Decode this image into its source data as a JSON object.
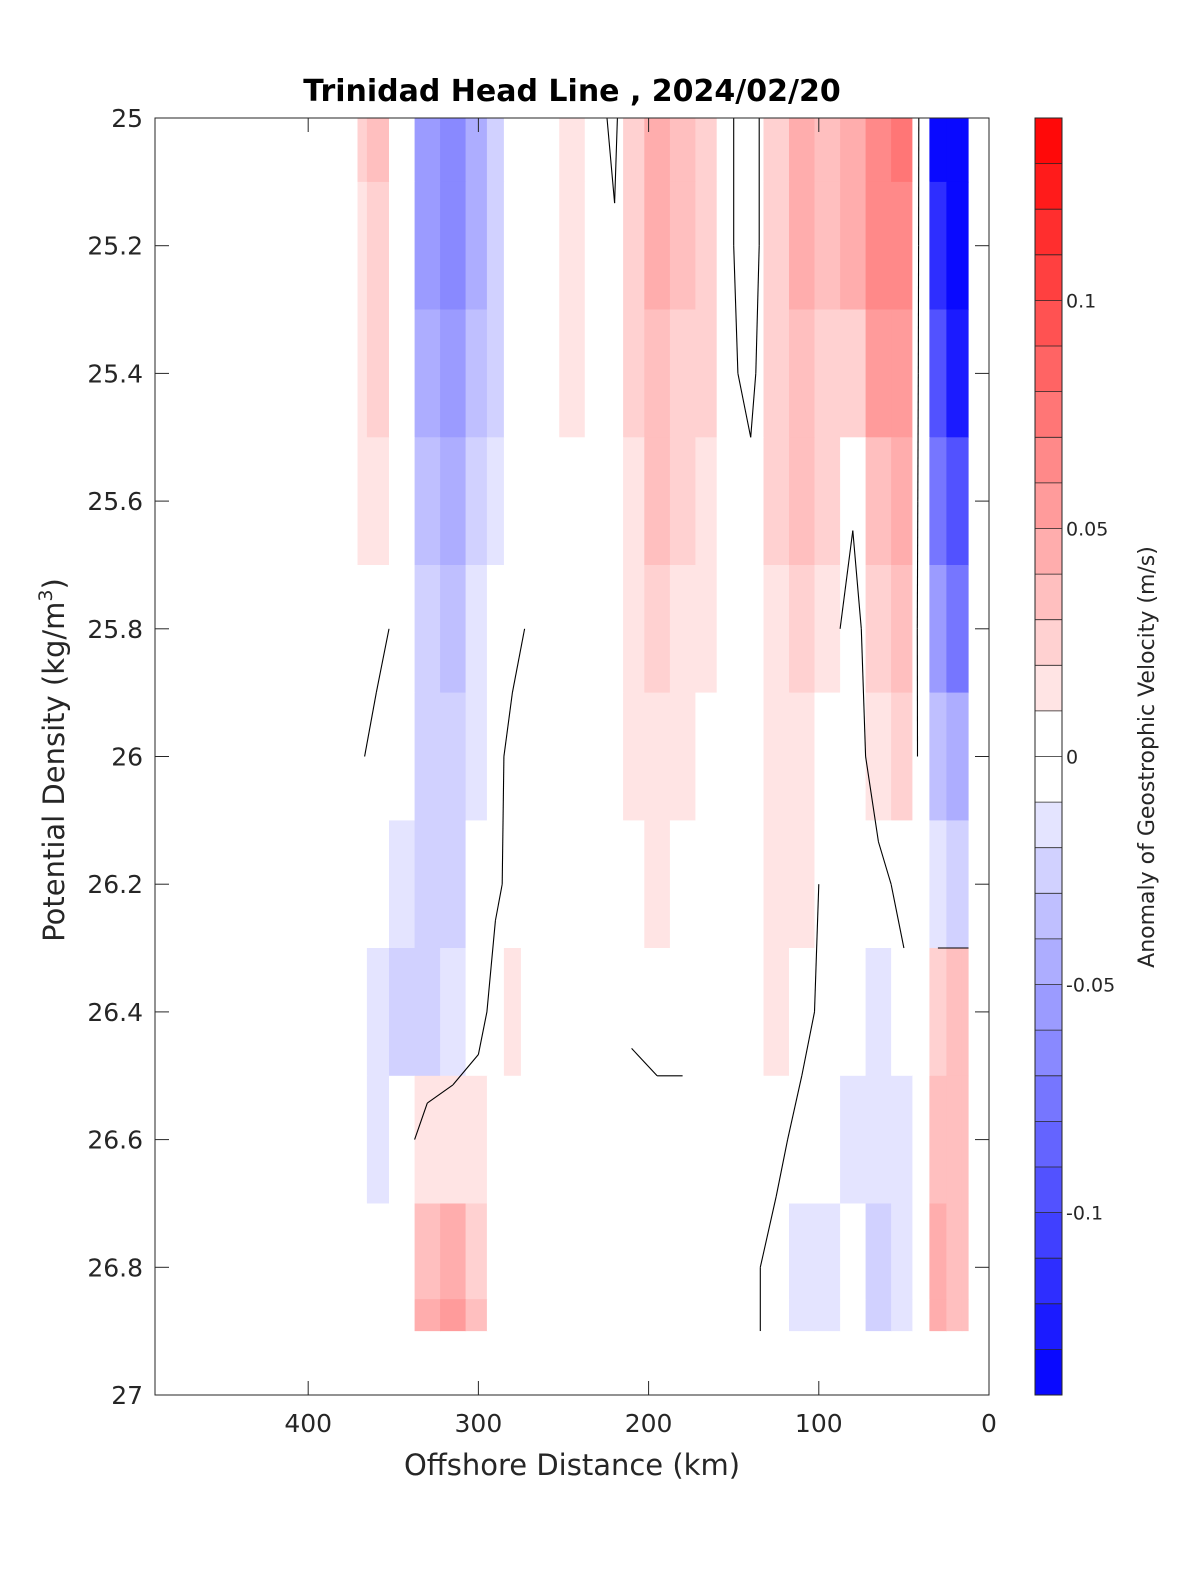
{
  "chart_data": {
    "type": "heatmap",
    "title": "Trinidad Head Line , 2024/02/20",
    "xlabel": "Offshore Distance (km)",
    "ylabel_main": "Potential Density (kg/m",
    "ylabel_sup": "3",
    "ylabel_close": ")",
    "xlim": [
      490,
      0
    ],
    "x_reversed": true,
    "ylim": [
      25,
      27
    ],
    "y_reversed": true,
    "x_ticks": [
      400,
      300,
      200,
      100,
      0
    ],
    "y_ticks": [
      25,
      25.2,
      25.4,
      25.6,
      25.8,
      26,
      26.2,
      26.4,
      26.6,
      26.8,
      27
    ],
    "colorbar": {
      "label": "Anomaly of Geostrophic Velocity (m/s)",
      "range": [
        -0.14,
        0.14
      ],
      "levels": 28,
      "ticks": [
        0.1,
        0.05,
        0,
        -0.05,
        -0.1
      ],
      "colormap": "blue-white-red",
      "neg_color": "#0000ff",
      "pos_color": "#ff0000"
    },
    "contour_level": 0,
    "contour_color": "#000000",
    "x": [
      371,
      360,
      345,
      330,
      315,
      300,
      290,
      280,
      270,
      260,
      245,
      230,
      220,
      210,
      195,
      180,
      165,
      155,
      140,
      125,
      110,
      95,
      80,
      65,
      50,
      40,
      30,
      20,
      12
    ],
    "y": [
      25.0,
      25.2,
      25.4,
      25.6,
      25.8,
      26.0,
      26.2,
      26.4,
      26.6,
      26.8,
      26.9
    ],
    "values": [
      [
        0.02,
        0.03,
        0.0,
        -0.06,
        -0.07,
        -0.05,
        -0.03,
        0.0,
        0.005,
        0.005,
        0.015,
        0.005,
        -0.004,
        0.02,
        0.04,
        0.03,
        0.02,
        0.005,
        -0.01,
        0.02,
        0.04,
        0.03,
        0.045,
        0.06,
        0.07,
        -0.01,
        -0.15,
        -0.15,
        -0.15
      ],
      [
        0.015,
        0.025,
        0.0,
        -0.06,
        -0.07,
        -0.05,
        -0.03,
        0.0,
        0.005,
        0.005,
        0.015,
        0.005,
        0.002,
        0.02,
        0.04,
        0.03,
        0.02,
        0.005,
        -0.01,
        0.02,
        0.04,
        0.03,
        0.045,
        0.06,
        0.065,
        -0.01,
        -0.12,
        -0.15,
        -0.15
      ],
      [
        0.015,
        0.02,
        0.0,
        -0.05,
        -0.06,
        -0.04,
        -0.025,
        0.0,
        0.005,
        0.005,
        0.015,
        0.005,
        0.002,
        0.02,
        0.035,
        0.025,
        0.02,
        0.005,
        -0.005,
        0.02,
        0.035,
        0.025,
        0.025,
        0.05,
        0.055,
        -0.01,
        -0.1,
        -0.13,
        -0.13
      ],
      [
        0.01,
        0.01,
        0.0,
        -0.04,
        -0.05,
        -0.03,
        -0.015,
        0.0,
        0.005,
        0.003,
        0.006,
        0.003,
        0.002,
        0.015,
        0.03,
        0.02,
        0.015,
        0.003,
        0.005,
        0.02,
        0.03,
        0.02,
        0.003,
        0.035,
        0.045,
        -0.01,
        -0.08,
        -0.1,
        -0.1
      ],
      [
        0.005,
        0.005,
        -0.005,
        -0.03,
        -0.04,
        -0.02,
        -0.01,
        -0.005,
        0.002,
        0.002,
        0.004,
        0.003,
        0.002,
        0.01,
        0.02,
        0.015,
        0.01,
        0.003,
        0.005,
        0.015,
        0.02,
        0.01,
        -0.01,
        0.02,
        0.03,
        -0.008,
        -0.06,
        -0.08,
        -0.08
      ],
      [
        0.003,
        -0.005,
        -0.01,
        -0.025,
        -0.03,
        -0.015,
        -0.005,
        0.005,
        0.002,
        0.002,
        0.004,
        0.003,
        0.002,
        0.01,
        0.015,
        0.01,
        0.005,
        0.002,
        0.003,
        0.01,
        0.015,
        0.0,
        -0.01,
        0.01,
        0.02,
        -0.005,
        -0.04,
        -0.05,
        -0.05
      ],
      [
        0.0,
        -0.01,
        -0.015,
        -0.025,
        -0.03,
        -0.01,
        -0.002,
        0.003,
        0.002,
        0.002,
        0.003,
        0.002,
        0.0,
        0.005,
        0.01,
        0.005,
        0.005,
        0.002,
        0.005,
        0.01,
        0.01,
        -0.005,
        -0.01,
        -0.005,
        0.005,
        0.0,
        -0.02,
        -0.03,
        -0.03
      ],
      [
        -0.01,
        -0.02,
        -0.025,
        -0.025,
        -0.02,
        -0.005,
        0.005,
        0.01,
        0.003,
        0.002,
        0.003,
        0.002,
        0.0,
        0.002,
        0.004,
        0.002,
        0.0,
        0.002,
        0.004,
        0.01,
        0.005,
        -0.005,
        -0.01,
        -0.015,
        -0.005,
        0.0,
        0.02,
        0.03,
        0.03
      ],
      [
        -0.01,
        -0.015,
        -0.01,
        0.01,
        0.015,
        0.01,
        0.005,
        0.003,
        0.002,
        0.002,
        0.003,
        0.0,
        -0.002,
        -0.005,
        -0.004,
        -0.002,
        0.0,
        0.002,
        0.003,
        0.004,
        -0.005,
        -0.01,
        -0.012,
        -0.02,
        -0.015,
        0.0,
        0.03,
        0.03,
        0.03
      ],
      [
        -0.01,
        -0.01,
        0.0,
        0.03,
        0.04,
        0.025,
        0.005,
        0.002,
        0.002,
        0.002,
        0.003,
        0.0,
        -0.002,
        -0.01,
        -0.01,
        -0.004,
        0.0,
        0.002,
        0.003,
        -0.005,
        -0.015,
        -0.02,
        -0.01,
        -0.025,
        -0.02,
        0.0,
        0.04,
        0.03,
        0.03
      ],
      [
        -0.01,
        -0.01,
        0.005,
        0.04,
        0.05,
        0.03,
        0.003,
        0.002,
        0.002,
        0.002,
        0.003,
        0.0,
        -0.002,
        -0.01,
        -0.01,
        -0.004,
        0.0,
        0.002,
        0.003,
        -0.005,
        -0.015,
        -0.02,
        -0.01,
        -0.025,
        -0.02,
        0.0,
        0.04,
        0.03,
        0.03
      ]
    ]
  }
}
